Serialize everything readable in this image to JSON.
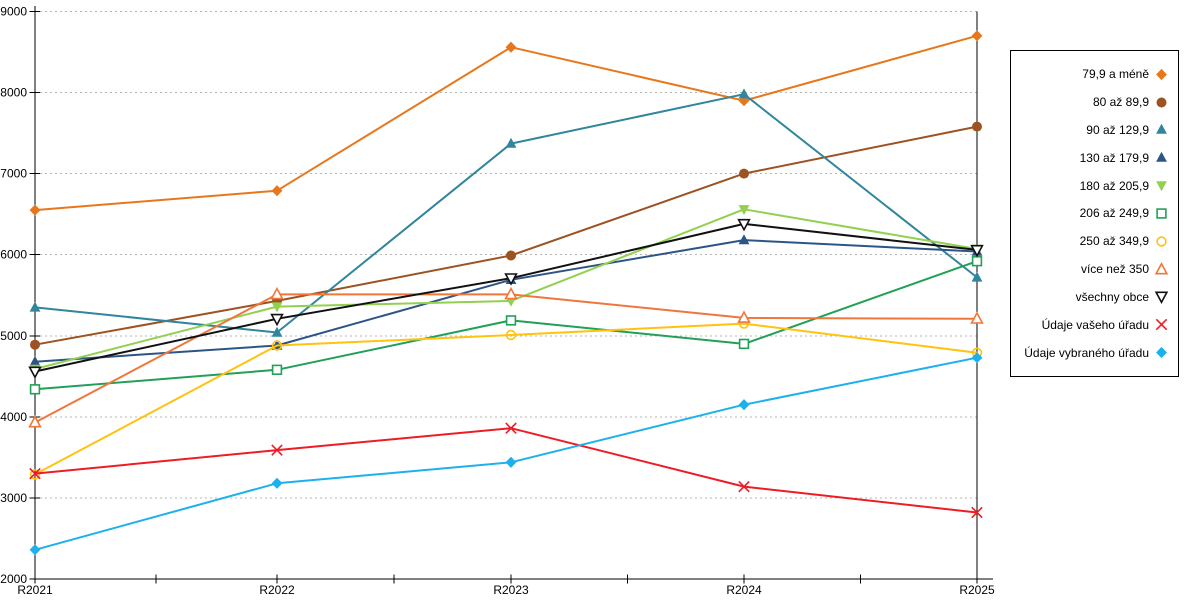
{
  "chart_data": {
    "type": "line",
    "title": "",
    "xlabel": "",
    "ylabel": "",
    "x_labels": [
      "R2021",
      "R2022",
      "R2023",
      "R2024",
      "R2025"
    ],
    "ylim": [
      2000,
      9000
    ],
    "ytick_step": 1000,
    "y_tick_labels": [
      "2000",
      "3000",
      "4000",
      "5000",
      "6000",
      "7000",
      "8000",
      "9000"
    ],
    "grid": "horizontal-dashed",
    "legend_position": "right-outside",
    "series": [
      {
        "name": "79,9 a méně",
        "color": "#E8771C",
        "marker": "diamond",
        "fill": "solid",
        "values": [
          6550,
          6790,
          8560,
          7900,
          8700
        ]
      },
      {
        "name": "80 až 89,9",
        "color": "#9C5221",
        "marker": "circle",
        "fill": "solid",
        "values": [
          4890,
          5430,
          5990,
          7000,
          7580
        ]
      },
      {
        "name": "90 až 129,9",
        "color": "#31859C",
        "marker": "triangle-up",
        "fill": "solid",
        "values": [
          5350,
          5040,
          7370,
          7980,
          5720
        ]
      },
      {
        "name": "130 až 179,9",
        "color": "#2C5586",
        "marker": "triangle-up",
        "fill": "solid",
        "values": [
          4680,
          4880,
          5690,
          6180,
          6040
        ]
      },
      {
        "name": "180 až 205,9",
        "color": "#92D050",
        "marker": "triangle-down",
        "fill": "solid",
        "values": [
          4590,
          5360,
          5430,
          6560,
          6070
        ]
      },
      {
        "name": "206 až 249,9",
        "color": "#21A057",
        "marker": "square",
        "fill": "open",
        "values": [
          4340,
          4580,
          5190,
          4900,
          5920
        ]
      },
      {
        "name": "250 až 349,9",
        "color": "#FFC20E",
        "marker": "circle",
        "fill": "open",
        "values": [
          3290,
          4880,
          5010,
          5150,
          4790
        ]
      },
      {
        "name": "více než 350",
        "color": "#F1763A",
        "marker": "triangle-up",
        "fill": "open",
        "values": [
          3930,
          5510,
          5510,
          5220,
          5210
        ]
      },
      {
        "name": "všechny obce",
        "color": "#111111",
        "marker": "triangle-down",
        "fill": "open",
        "values": [
          4560,
          5210,
          5710,
          6380,
          6060
        ]
      },
      {
        "name": "Údaje vašeho úřadu",
        "color": "#EE1C25",
        "marker": "x",
        "fill": "open",
        "values": [
          3300,
          3590,
          3860,
          3140,
          2820
        ]
      },
      {
        "name": "Údaje vybraného úřadu",
        "color": "#1CB1EC",
        "marker": "diamond",
        "fill": "solid",
        "values": [
          2360,
          3180,
          3440,
          4150,
          4730
        ]
      }
    ]
  }
}
